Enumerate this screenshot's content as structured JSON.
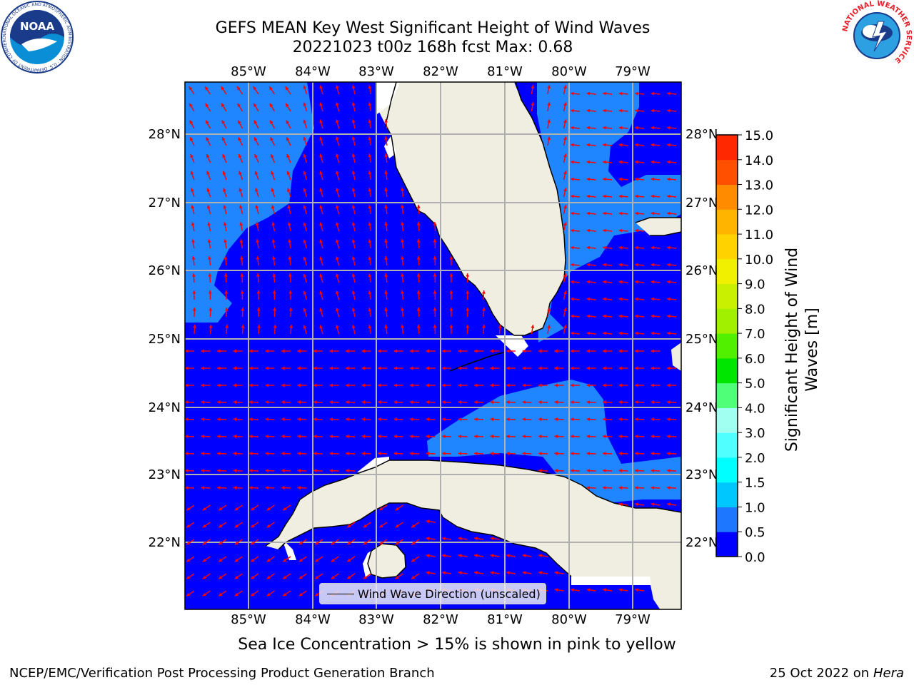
{
  "title": {
    "line1": "GEFS MEAN Key West Significant Height of Wind Waves",
    "line2": "20221023 t00z 168h fcst   Max: 0.68"
  },
  "map": {
    "lon_ticks": [
      "85°W",
      "84°W",
      "83°W",
      "82°W",
      "81°W",
      "80°W",
      "79°W"
    ],
    "lat_ticks": [
      "28°N",
      "27°N",
      "26°N",
      "25°N",
      "24°N",
      "23°N",
      "22°N"
    ],
    "lon_range": [
      -86.0,
      -78.3
    ],
    "lat_range": [
      21.0,
      28.75
    ],
    "colors": {
      "land": "#efeee0",
      "sea_0_05": "#0000ff",
      "sea_05_10": "#1f86ff",
      "arrow": "#ff0000",
      "grid": "#b0b0b0",
      "coastline": "#000000"
    }
  },
  "legend": {
    "label": "Wind Wave Direction (unscaled)"
  },
  "colorbar": {
    "label": "Significant Height of Wind Waves [m]",
    "label_lines": [
      "Significant Height of Wind",
      "Waves [m]"
    ],
    "ticks": [
      "0.0",
      "0.5",
      "1.0",
      "1.5",
      "2.0",
      "3.0",
      "4.0",
      "5.0",
      "6.0",
      "7.0",
      "8.0",
      "9.0",
      "10.0",
      "11.0",
      "12.0",
      "13.0",
      "14.0",
      "15.0"
    ],
    "colors": [
      "#0000ff",
      "#1e78ff",
      "#00c8ff",
      "#00ffff",
      "#50ffff",
      "#a0fff0",
      "#50ff78",
      "#00e600",
      "#50f000",
      "#a0f000",
      "#c8f000",
      "#f0f000",
      "#ffd200",
      "#ffb400",
      "#ff8c00",
      "#ff5000",
      "#ff2800",
      "#ff0000"
    ]
  },
  "caption": "Sea Ice Concentration > 15% is shown in pink to yellow",
  "footer": {
    "left": "NCEP/EMC/Verification Post Processing Product Generation Branch",
    "right_prefix": "25 Oct 2022 on ",
    "right_host": "Hera"
  },
  "logos": {
    "noaa_text": "NOAA",
    "noaa_ring": "NATIONAL OCEANIC AND ATMOSPHERIC ADMINISTRATION · U.S. DEPARTMENT OF COMMERCE",
    "nws_ring": "NATIONAL WEATHER SERVICE"
  }
}
